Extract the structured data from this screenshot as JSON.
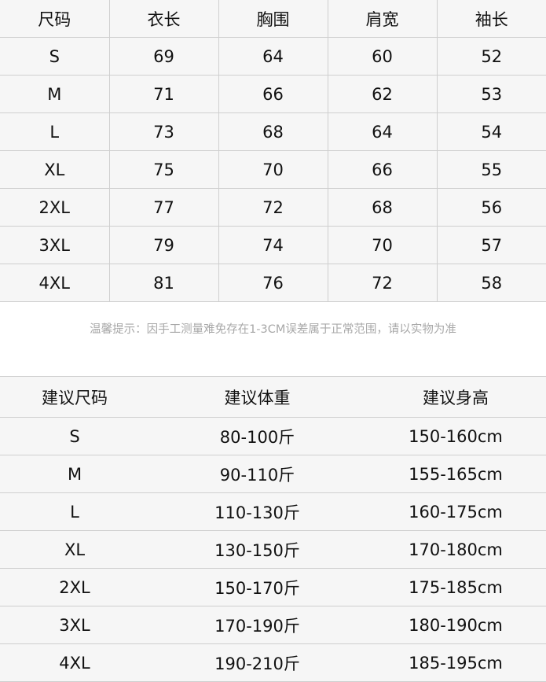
{
  "size_table": {
    "headers": [
      "尺码",
      "衣长",
      "胸围",
      "肩宽",
      "袖长"
    ],
    "rows": [
      [
        "S",
        "69",
        "64",
        "60",
        "52"
      ],
      [
        "M",
        "71",
        "66",
        "62",
        "53"
      ],
      [
        "L",
        "73",
        "68",
        "64",
        "54"
      ],
      [
        "XL",
        "75",
        "70",
        "66",
        "55"
      ],
      [
        "2XL",
        "77",
        "72",
        "68",
        "56"
      ],
      [
        "3XL",
        "79",
        "74",
        "70",
        "57"
      ],
      [
        "4XL",
        "81",
        "76",
        "72",
        "58"
      ]
    ]
  },
  "note": "温馨提示：因手工测量难免存在1-3CM误差属于正常范围，请以实物为准",
  "recommend_table": {
    "headers": [
      "建议尺码",
      "建议体重",
      "建议身高"
    ],
    "rows": [
      [
        "S",
        "80-100斤",
        "150-160cm"
      ],
      [
        "M",
        "90-110斤",
        "155-165cm"
      ],
      [
        "L",
        "110-130斤",
        "160-175cm"
      ],
      [
        "XL",
        "130-150斤",
        "170-180cm"
      ],
      [
        "2XL",
        "150-170斤",
        "175-185cm"
      ],
      [
        "3XL",
        "170-190斤",
        "180-190cm"
      ],
      [
        "4XL",
        "190-210斤",
        "185-195cm"
      ]
    ]
  }
}
